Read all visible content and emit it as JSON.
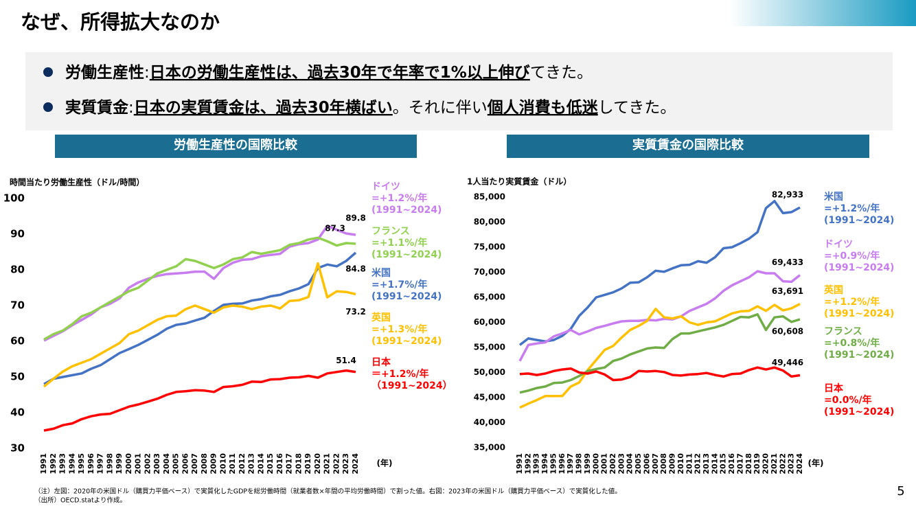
{
  "header": {
    "title": "なぜ、所得拡大なのか"
  },
  "bullets": [
    [
      "労働生産性",
      ":",
      "日本の労働生産性は、過去30年で年率で1%以上伸び",
      "てきた。"
    ],
    [
      "実質賃金",
      ":",
      "日本の実質賃金は、過去30年横ばい",
      "。それに伴い",
      "個人消費も低迷",
      "してきた。"
    ]
  ],
  "section_titles": [
    "労働生産性の国際比較",
    "実質賃金の国際比較"
  ],
  "chart_data": [
    {
      "type": "line",
      "ylabel": "時間当たり労働生産性（ドル/時間）",
      "xlabel": "(年)",
      "categories": [
        "1991",
        "1992",
        "1993",
        "1994",
        "1995",
        "1996",
        "1997",
        "1998",
        "1999",
        "2000",
        "2001",
        "2002",
        "2003",
        "2004",
        "2005",
        "2006",
        "2007",
        "2008",
        "2009",
        "2010",
        "2011",
        "2012",
        "2013",
        "2014",
        "2015",
        "2016",
        "2017",
        "2018",
        "2019",
        "2020",
        "2021",
        "2022",
        "2023",
        "2024"
      ],
      "ylim": [
        30,
        100
      ],
      "yticks": [
        30,
        40,
        50,
        60,
        70,
        80,
        90,
        100
      ],
      "grid": false,
      "series": [
        {
          "name": "ドイツ",
          "annotation": [
            "=+1.2%/年",
            "(1991~2024)"
          ],
          "color": "#c77cf0",
          "values": [
            60.2,
            61.5,
            62.8,
            64.5,
            66,
            67.5,
            69.5,
            70.5,
            72,
            75,
            76.5,
            77.5,
            78.3,
            78.8,
            79,
            79.2,
            79.5,
            79.5,
            77.5,
            80.5,
            82,
            82.8,
            83,
            83.8,
            84.2,
            84.5,
            86.5,
            87.2,
            87.5,
            88.5,
            92.3,
            91.2,
            90.2,
            89.8
          ]
        },
        {
          "name": "フランス",
          "annotation": [
            "=+1.1%/年",
            "(1991~2024)"
          ],
          "color": "#92d050",
          "values": [
            60.5,
            62,
            63,
            64.8,
            67,
            68,
            69.5,
            71,
            72.5,
            74,
            75,
            77,
            79,
            80,
            81,
            83,
            82.5,
            81.5,
            80.5,
            81.5,
            83,
            83.5,
            85,
            84.5,
            85,
            85.5,
            87,
            87.5,
            88.5,
            89,
            88,
            86.8,
            87.5,
            87.3
          ]
        },
        {
          "name": "米国",
          "annotation": [
            "=+1.7%/年",
            "(1991~2024)"
          ],
          "color": "#4472c4",
          "values": [
            48,
            49.5,
            50,
            50.5,
            51,
            52.3,
            53.3,
            55,
            56.7,
            57.8,
            59,
            60.4,
            61.8,
            63.5,
            64.6,
            65,
            65.8,
            66.6,
            68.5,
            70.2,
            70.5,
            70.6,
            71.4,
            71.8,
            72.6,
            73,
            74,
            74.8,
            76,
            80.5,
            81.5,
            81,
            82.5,
            84.8
          ]
        },
        {
          "name": "英国",
          "annotation": [
            "=+1.3%/年",
            "(1991~2024)"
          ],
          "color": "#ffc000",
          "values": [
            47.3,
            49.5,
            51.5,
            53,
            54,
            55,
            56.5,
            58,
            59.5,
            62,
            63,
            64.5,
            66,
            67,
            67.2,
            69,
            70,
            69,
            68,
            69.5,
            70,
            69.7,
            69,
            69.7,
            70,
            69.2,
            71.3,
            71.5,
            72.4,
            81.8,
            72.3,
            74,
            73.8,
            73.2
          ]
        },
        {
          "name": "日本",
          "annotation": [
            "＝+1.2%/年",
            "（1991~2024）"
          ],
          "color": "#ff0000",
          "values": [
            35,
            35.5,
            36.5,
            37,
            38.2,
            39,
            39.5,
            39.7,
            40.7,
            41.7,
            42.3,
            43.1,
            43.9,
            45,
            45.8,
            46,
            46.3,
            46.2,
            45.8,
            47.2,
            47.4,
            47.8,
            48.7,
            48.6,
            49.3,
            49.4,
            49.8,
            49.9,
            50.3,
            49.8,
            51,
            51.4,
            51.8,
            51.4
          ]
        }
      ]
    },
    {
      "type": "line",
      "ylabel": "1人当たり実質賃金（ドル）",
      "xlabel": "(年)",
      "categories": [
        "1991",
        "1992",
        "1993",
        "1994",
        "1995",
        "1996",
        "1997",
        "1998",
        "1999",
        "2000",
        "2001",
        "2002",
        "2003",
        "2004",
        "2005",
        "2006",
        "2007",
        "2008",
        "2009",
        "2010",
        "2011",
        "2012",
        "2013",
        "2014",
        "2015",
        "2016",
        "2017",
        "2018",
        "2019",
        "2020",
        "2021",
        "2022",
        "2023",
        "2024"
      ],
      "ylim": [
        35000,
        85000
      ],
      "yticks": [
        {
          "value": 35000,
          "label": "35,000"
        },
        {
          "value": 40000,
          "label": "40,000"
        },
        {
          "value": 45000,
          "label": "45,000"
        },
        {
          "value": 50000,
          "label": "50,000"
        },
        {
          "value": 55000,
          "label": "55,000"
        },
        {
          "value": 60000,
          "label": "60,000"
        },
        {
          "value": 65000,
          "label": "65,000"
        },
        {
          "value": 70000,
          "label": "70,000"
        },
        {
          "value": 75000,
          "label": "75,000"
        },
        {
          "value": 80000,
          "label": "80,000"
        },
        {
          "value": 85000,
          "label": "85,000"
        }
      ],
      "grid": false,
      "series": [
        {
          "name": "米国",
          "annotation": [
            "=+1.2%/年",
            "(1991~2024)"
          ],
          "color": "#4472c4",
          "values": [
            55500,
            56800,
            56500,
            56200,
            56500,
            57300,
            58700,
            61300,
            63000,
            65000,
            65500,
            66000,
            66800,
            67900,
            68000,
            69000,
            70300,
            70100,
            70800,
            71400,
            71500,
            72200,
            71900,
            73000,
            74800,
            75000,
            75800,
            76700,
            78000,
            82800,
            84200,
            81800,
            82000,
            82933
          ],
          "value_labels": [
            null,
            null,
            null,
            null,
            null,
            null,
            null,
            null,
            null,
            null,
            null,
            null,
            null,
            null,
            null,
            null,
            null,
            null,
            null,
            null,
            null,
            null,
            null,
            null,
            null,
            null,
            null,
            null,
            null,
            null,
            null,
            null,
            null,
            "82,933"
          ]
        },
        {
          "name": "ドイツ",
          "annotation": [
            "=+0.9%/年",
            "(1991~2024)"
          ],
          "color": "#c77cf0",
          "values": [
            52300,
            55500,
            55800,
            56000,
            57200,
            57800,
            58500,
            57600,
            58200,
            58900,
            59300,
            59800,
            60200,
            60300,
            60300,
            60500,
            60400,
            60700,
            60600,
            61200,
            62300,
            63000,
            63700,
            64800,
            66300,
            67400,
            68200,
            69000,
            70200,
            69800,
            69800,
            68200,
            68100,
            69433
          ],
          "value_labels": [
            null,
            null,
            null,
            null,
            null,
            null,
            null,
            null,
            null,
            null,
            null,
            null,
            null,
            null,
            null,
            null,
            null,
            null,
            null,
            null,
            null,
            null,
            null,
            null,
            null,
            null,
            null,
            null,
            null,
            null,
            null,
            null,
            null,
            "69,433"
          ]
        },
        {
          "name": "英国",
          "annotation": [
            "=+1.2%/年",
            "(1991~2024)"
          ],
          "color": "#ffc000",
          "values": [
            43000,
            43800,
            44500,
            45300,
            45300,
            45300,
            47200,
            48000,
            50500,
            52500,
            54500,
            55300,
            57000,
            58500,
            59300,
            60300,
            62700,
            61000,
            60800,
            61200,
            60000,
            59500,
            60000,
            60200,
            61000,
            61800,
            62200,
            62300,
            63200,
            62300,
            63500,
            62400,
            62800,
            63691
          ],
          "value_labels": [
            null,
            null,
            null,
            null,
            null,
            null,
            null,
            null,
            null,
            null,
            null,
            null,
            null,
            null,
            null,
            null,
            null,
            null,
            null,
            null,
            null,
            null,
            null,
            null,
            null,
            null,
            null,
            null,
            null,
            null,
            null,
            null,
            null,
            "63,691"
          ]
        },
        {
          "name": "フランス",
          "annotation": [
            "=+0.8%/年",
            "(1991~2024)"
          ],
          "color": "#70ad47",
          "values": [
            46000,
            46400,
            46900,
            47200,
            47900,
            48000,
            48500,
            49300,
            50300,
            50700,
            51000,
            52300,
            52800,
            53600,
            54200,
            54800,
            55000,
            54900,
            56700,
            57800,
            57800,
            58200,
            58600,
            59000,
            59500,
            60300,
            61100,
            61000,
            61600,
            58500,
            61000,
            61200,
            60100,
            60608
          ],
          "value_labels": [
            null,
            null,
            null,
            null,
            null,
            null,
            null,
            null,
            null,
            null,
            null,
            null,
            null,
            null,
            null,
            null,
            null,
            null,
            null,
            null,
            null,
            null,
            null,
            null,
            null,
            null,
            null,
            null,
            null,
            null,
            null,
            null,
            null,
            "60,608"
          ]
        },
        {
          "name": "日本",
          "annotation": [
            "=0.0%/年",
            "(1991~2024)"
          ],
          "color": "#ff0000",
          "values": [
            49700,
            49800,
            49500,
            49800,
            50300,
            50600,
            50800,
            50000,
            49800,
            50200,
            49600,
            48500,
            48600,
            49100,
            50300,
            50200,
            50300,
            50100,
            49500,
            49400,
            49600,
            49700,
            49900,
            49500,
            49200,
            49700,
            49800,
            50500,
            51000,
            50600,
            51000,
            50400,
            49200,
            49446
          ],
          "value_labels": [
            null,
            null,
            null,
            null,
            null,
            null,
            null,
            null,
            null,
            null,
            null,
            null,
            null,
            null,
            null,
            null,
            null,
            null,
            null,
            null,
            null,
            null,
            null,
            null,
            null,
            null,
            null,
            null,
            null,
            null,
            null,
            null,
            null,
            "49,446"
          ]
        }
      ]
    }
  ],
  "notes": [
    "（注）左図：2020年の米国ドル（購買力平価ベース）で実質化したGDPを総労働時間（就業者数×年間の平均労働時間）で割った値。右図：2023年の米国ドル（購買力平価ベース）で実質化した値。",
    "（出所）OECD.statより作成。"
  ],
  "page_number": "5"
}
